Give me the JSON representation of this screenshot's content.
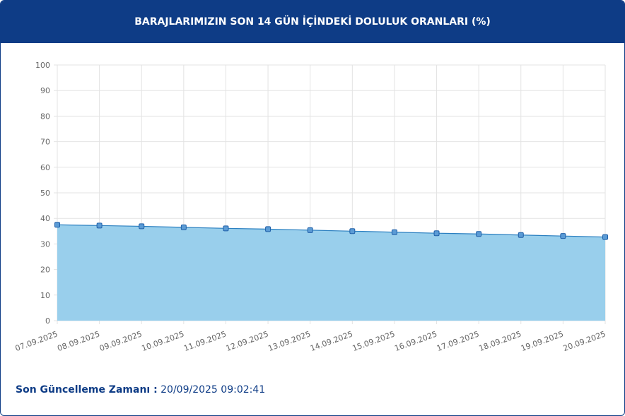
{
  "chart_data": {
    "type": "area",
    "title": "BARAJLARIMIZIN SON 14 GÜN İÇİNDEKİ DOLULUK ORANLARI (%)",
    "categories": [
      "07.09.2025",
      "08.09.2025",
      "09.09.2025",
      "10.09.2025",
      "11.09.2025",
      "12.09.2025",
      "13.09.2025",
      "14.09.2025",
      "15.09.2025",
      "16.09.2025",
      "17.09.2025",
      "18.09.2025",
      "19.09.2025",
      "20.09.2025"
    ],
    "values": [
      37.5,
      37.2,
      36.9,
      36.5,
      36.1,
      35.8,
      35.4,
      35.0,
      34.6,
      34.2,
      33.9,
      33.5,
      33.1,
      32.7
    ],
    "color": "#2a7fc0",
    "area_color": "#99cfec",
    "ylim": [
      0,
      100
    ],
    "yticks": [
      0,
      10,
      20,
      30,
      40,
      50,
      60,
      70,
      80,
      90,
      100
    ],
    "grid": true
  },
  "footer": {
    "label": "Son Güncelleme Zamanı :",
    "value": "20/09/2025 09:02:41"
  }
}
